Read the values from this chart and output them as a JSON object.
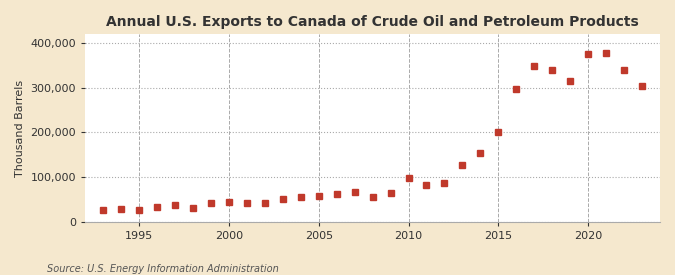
{
  "title": "Annual U.S. Exports to Canada of Crude Oil and Petroleum Products",
  "ylabel": "Thousand Barrels",
  "source": "Source: U.S. Energy Information Administration",
  "background_color": "#f5e8ce",
  "plot_bg_color": "#ffffff",
  "marker_color": "#c0392b",
  "marker": "s",
  "markersize": 4,
  "years": [
    1993,
    1994,
    1995,
    1996,
    1997,
    1998,
    1999,
    2000,
    2001,
    2002,
    2003,
    2004,
    2005,
    2006,
    2007,
    2008,
    2009,
    2010,
    2011,
    2012,
    2013,
    2014,
    2015,
    2016,
    2017,
    2018,
    2019,
    2020,
    2021,
    2022,
    2023
  ],
  "values": [
    27000,
    28000,
    26000,
    32000,
    38000,
    30000,
    42000,
    45000,
    42000,
    43000,
    52000,
    55000,
    58000,
    63000,
    67000,
    56000,
    65000,
    97000,
    82000,
    86000,
    128000,
    153000,
    200000,
    298000,
    348000,
    340000,
    315000,
    377000,
    378000,
    340000,
    305000
  ],
  "xlim": [
    1992,
    2024
  ],
  "ylim": [
    0,
    420000
  ],
  "yticks": [
    0,
    100000,
    200000,
    300000,
    400000
  ],
  "xticks": [
    1995,
    2000,
    2005,
    2010,
    2015,
    2020
  ],
  "grid_color": "#aaaaaa",
  "grid_linestyle": ":",
  "grid_linewidth": 0.8,
  "vgrid_color": "#aaaaaa",
  "vgrid_linestyle": "--",
  "vgrid_linewidth": 0.7
}
